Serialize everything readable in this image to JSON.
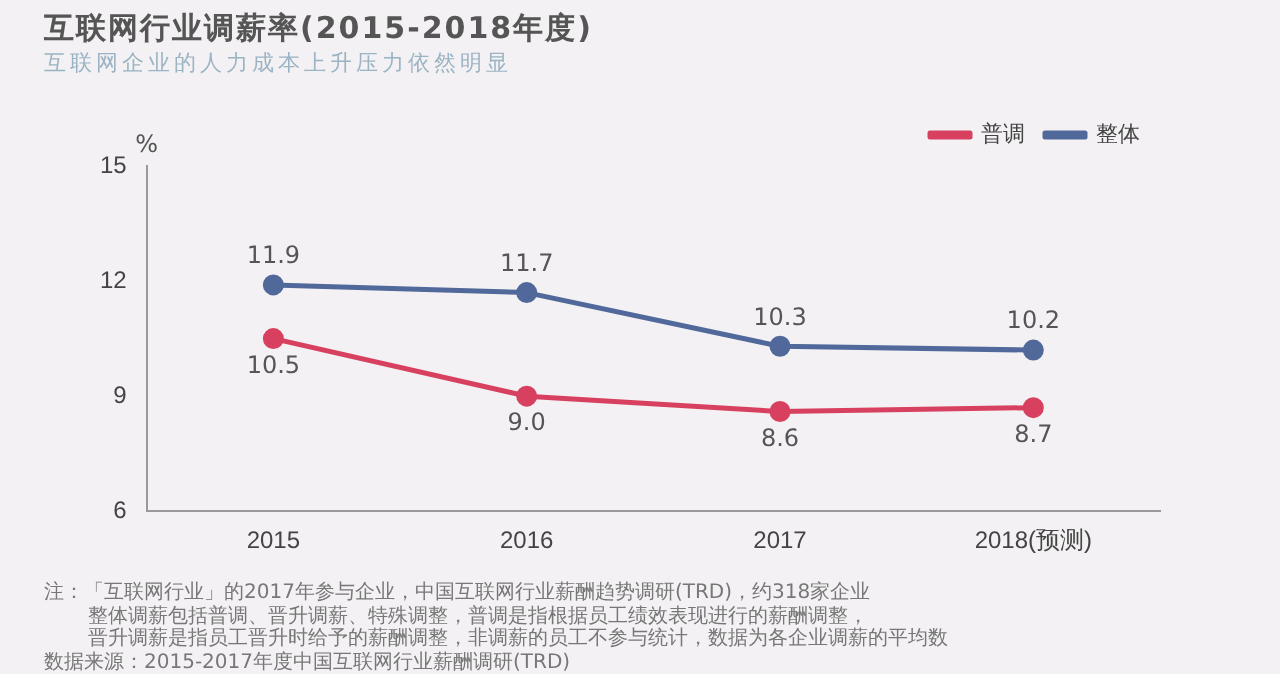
{
  "chart_data": {
    "type": "line",
    "title": "互联网行业调薪率(2015-2018年度)",
    "subtitle": "互联网企业的人力成本上升压力依然明显",
    "ylabel": "%",
    "categories": [
      "2015",
      "2016",
      "2017",
      "2018(预测)"
    ],
    "series": [
      {
        "name": "普调",
        "color": "#d8405f",
        "values": [
          10.5,
          9.0,
          8.6,
          8.7
        ],
        "value_labels": [
          "10.5",
          "9.0",
          "8.6",
          "8.7"
        ]
      },
      {
        "name": "整体",
        "color": "#51689a",
        "values": [
          11.9,
          11.7,
          10.3,
          10.2
        ],
        "value_labels": [
          "11.9",
          "11.7",
          "10.3",
          "10.2"
        ]
      }
    ],
    "ylim": [
      6,
      15
    ],
    "yticks": [
      6,
      9,
      12,
      15
    ],
    "grid": false,
    "legend": "top right",
    "marker": "circle",
    "line_style": "solid",
    "annotations": [
      "注：「互联网行业」的2017年参与企业，中国互联网行业薪酬趋势调研(TRD)，约318家企业",
      "整体调薪包括普调、晋升调薪、特殊调整，普调是指根据员工绩效表现进行的薪酬调整，",
      "晋升调薪是指员工晋升时给予的薪酬调整，非调薪的员工不参与统计，数据为各企业调薪的平均数",
      "数据来源：2015-2017年度中国互联网行业薪酬调研(TRD)"
    ]
  }
}
